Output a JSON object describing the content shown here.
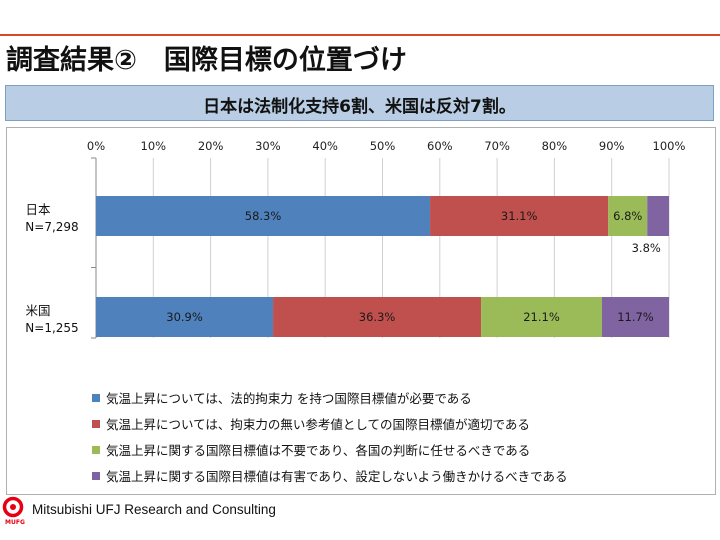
{
  "slide": {
    "title": "調査結果②　国際目標の位置づけ",
    "subtitle": "日本は法制化支持6割、米国は反対7割。",
    "footer_company": "Mitsubishi UFJ Research and Consulting",
    "logo_text": "MUFG"
  },
  "chart_data": {
    "type": "bar",
    "orientation": "horizontal",
    "stacked": true,
    "percent_axis": true,
    "xlim": [
      0,
      100
    ],
    "x_ticks": [
      "0%",
      "10%",
      "20%",
      "30%",
      "40%",
      "50%",
      "60%",
      "70%",
      "80%",
      "90%",
      "100%"
    ],
    "legend_position": "bottom",
    "categories": [
      {
        "label": "日本",
        "n": "N=7,298"
      },
      {
        "label": "米国",
        "n": "N=1,255"
      }
    ],
    "series": [
      {
        "name": "気温上昇については、法的拘束力 を持つ国際目標値が必要である",
        "color": "#4f81bd",
        "values": [
          58.3,
          30.9
        ],
        "labels": [
          "58.3%",
          "30.9%"
        ]
      },
      {
        "name": "気温上昇については、拘束力の無い参考値としての国際目標値が適切である",
        "color": "#c0504d",
        "values": [
          31.1,
          36.3
        ],
        "labels": [
          "31.1%",
          "36.3%"
        ]
      },
      {
        "name": "気温上昇に関する国際目標値は不要であり、各国の判断に任せるべきである",
        "color": "#9bbb59",
        "values": [
          6.8,
          21.1
        ],
        "labels": [
          "6.8%",
          "21.1%"
        ]
      },
      {
        "name": "気温上昇に関する国際目標値は有害であり、設定しないよう働きかけるべきである",
        "color": "#8064a2",
        "values": [
          3.8,
          11.7
        ],
        "labels": [
          "3.8%",
          "11.7%"
        ]
      }
    ]
  }
}
